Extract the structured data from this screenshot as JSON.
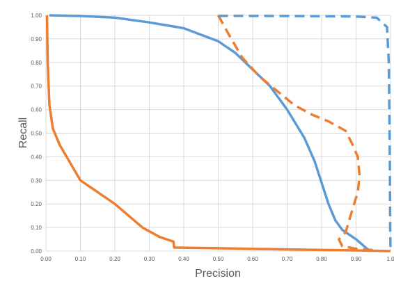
{
  "chart_data": {
    "type": "line",
    "title": "",
    "xlabel": "Precision",
    "ylabel": "Recall",
    "xlim": [
      0,
      1.0
    ],
    "ylim": [
      0,
      1.0
    ],
    "grid": true,
    "legend": "none",
    "x_ticks": [
      "0.00",
      "0.10",
      "0.20",
      "0.30",
      "0.40",
      "0.50",
      "0.60",
      "0.70",
      "0.80",
      "0.90",
      "1.0"
    ],
    "y_ticks": [
      "0.00",
      "0.10",
      "0.20",
      "0.30",
      "0.40",
      "0.50",
      "0.60",
      "0.70",
      "0.80",
      "0.90",
      "1.00"
    ],
    "series": [
      {
        "color": "#5B9BD5",
        "style": "solid",
        "points": [
          [
            0.01,
            1.0
          ],
          [
            0.1,
            0.997
          ],
          [
            0.2,
            0.99
          ],
          [
            0.3,
            0.97
          ],
          [
            0.4,
            0.945
          ],
          [
            0.5,
            0.89
          ],
          [
            0.55,
            0.84
          ],
          [
            0.6,
            0.77
          ],
          [
            0.65,
            0.7
          ],
          [
            0.7,
            0.6
          ],
          [
            0.75,
            0.48
          ],
          [
            0.78,
            0.38
          ],
          [
            0.8,
            0.29
          ],
          [
            0.82,
            0.2
          ],
          [
            0.84,
            0.13
          ],
          [
            0.86,
            0.09
          ],
          [
            0.9,
            0.05
          ],
          [
            0.94,
            0.0
          ]
        ]
      },
      {
        "color": "#ED7D31",
        "style": "solid",
        "points": [
          [
            0.003,
            1.0
          ],
          [
            0.005,
            0.8
          ],
          [
            0.01,
            0.62
          ],
          [
            0.02,
            0.52
          ],
          [
            0.04,
            0.45
          ],
          [
            0.06,
            0.4
          ],
          [
            0.1,
            0.3
          ],
          [
            0.2,
            0.2
          ],
          [
            0.28,
            0.1
          ],
          [
            0.33,
            0.06
          ],
          [
            0.37,
            0.04
          ],
          [
            0.372,
            0.015
          ],
          [
            0.5,
            0.012
          ],
          [
            0.7,
            0.007
          ],
          [
            0.9,
            0.003
          ],
          [
            1.0,
            0.0
          ]
        ]
      },
      {
        "color": "#ED7D31",
        "style": "dashed",
        "points": [
          [
            0.5,
            1.0
          ],
          [
            0.53,
            0.92
          ],
          [
            0.57,
            0.82
          ],
          [
            0.62,
            0.74
          ],
          [
            0.67,
            0.68
          ],
          [
            0.72,
            0.62
          ],
          [
            0.77,
            0.58
          ],
          [
            0.82,
            0.55
          ],
          [
            0.87,
            0.51
          ],
          [
            0.89,
            0.45
          ],
          [
            0.905,
            0.4
          ],
          [
            0.91,
            0.32
          ],
          [
            0.905,
            0.25
          ],
          [
            0.89,
            0.18
          ],
          [
            0.88,
            0.13
          ],
          [
            0.87,
            0.08
          ],
          [
            0.85,
            0.05
          ],
          [
            0.86,
            0.02
          ],
          [
            0.9,
            0.01
          ],
          [
            0.96,
            0.003
          ]
        ]
      },
      {
        "color": "#5B9BD5",
        "style": "dashed",
        "points": [
          [
            0.5,
            0.998
          ],
          [
            0.7,
            0.997
          ],
          [
            0.9,
            0.995
          ],
          [
            0.96,
            0.99
          ],
          [
            0.99,
            0.95
          ],
          [
            0.995,
            0.8
          ],
          [
            0.998,
            0.4
          ],
          [
            0.999,
            0.1
          ],
          [
            1.0,
            0.01
          ]
        ]
      }
    ]
  }
}
